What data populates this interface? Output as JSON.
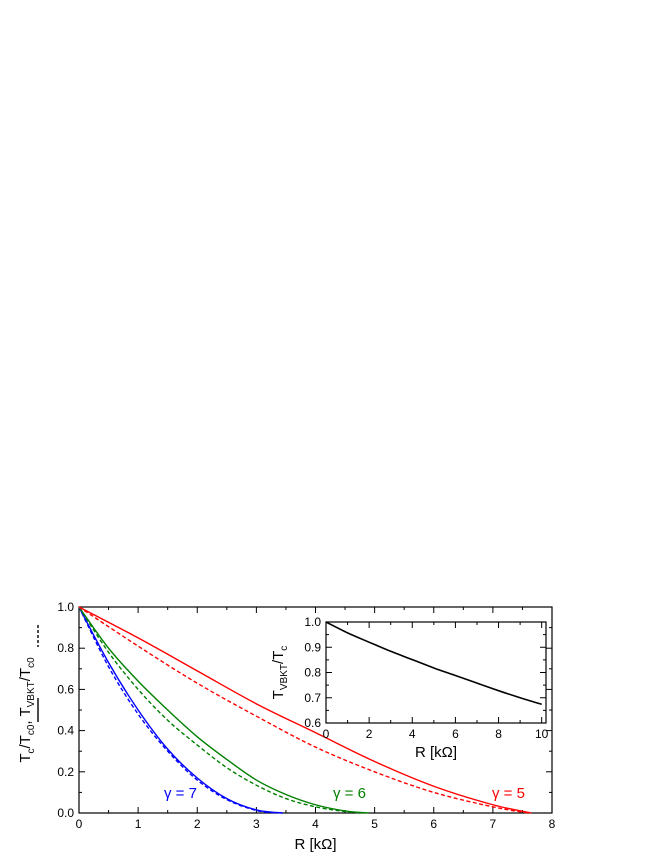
{
  "chart_data": [
    {
      "type": "line",
      "name": "main",
      "xlabel": "R [kΩ]",
      "ylabel_parts": [
        "T",
        "c",
        "/T",
        "c0",
        ", T",
        "VBKT",
        "/T",
        "c0"
      ],
      "xlim": [
        0,
        8
      ],
      "ylim": [
        0,
        1.0
      ],
      "xticks": [
        0,
        1,
        2,
        3,
        4,
        5,
        6,
        7,
        8
      ],
      "yticks": [
        0.0,
        0.2,
        0.4,
        0.6,
        0.8,
        1.0
      ],
      "xtick_labels": [
        "0",
        "1",
        "2",
        "3",
        "4",
        "5",
        "6",
        "7",
        "8"
      ],
      "ytick_labels": [
        "0.0",
        "0.2",
        "0.4",
        "0.6",
        "0.8",
        "1.0"
      ],
      "legend_style_solid": "solid line = T_c/T_c0",
      "legend_style_dashed": "dashed line = T_VBKT/T_c0",
      "series": [
        {
          "gamma_label": "γ = 7",
          "color": "#0000ff",
          "style": "solid",
          "x": [
            0,
            0.5,
            1.0,
            1.5,
            2.0,
            2.5,
            3.0,
            3.45
          ],
          "y": [
            1.0,
            0.73,
            0.5,
            0.31,
            0.17,
            0.07,
            0.015,
            0.0
          ]
        },
        {
          "gamma_label": "γ = 7",
          "color": "#0000ff",
          "style": "dashed",
          "x": [
            0,
            0.5,
            1.0,
            1.5,
            2.0,
            2.5,
            3.0,
            3.35
          ],
          "y": [
            1.0,
            0.71,
            0.48,
            0.3,
            0.16,
            0.065,
            0.012,
            0.0
          ]
        },
        {
          "gamma_label": "γ = 6",
          "color": "#008000",
          "style": "solid",
          "x": [
            0,
            0.5,
            1.0,
            1.5,
            2.0,
            2.5,
            3.0,
            3.5,
            4.0,
            4.5,
            4.9
          ],
          "y": [
            1.0,
            0.8,
            0.64,
            0.5,
            0.37,
            0.26,
            0.16,
            0.09,
            0.04,
            0.01,
            0.0
          ]
        },
        {
          "gamma_label": "γ = 6",
          "color": "#008000",
          "style": "dashed",
          "x": [
            0,
            0.5,
            1.0,
            1.5,
            2.0,
            2.5,
            3.0,
            3.5,
            4.0,
            4.5,
            4.85
          ],
          "y": [
            1.0,
            0.78,
            0.6,
            0.45,
            0.33,
            0.22,
            0.135,
            0.07,
            0.03,
            0.007,
            0.0
          ]
        },
        {
          "gamma_label": "γ = 5",
          "color": "#ff0000",
          "style": "solid",
          "x": [
            0,
            1,
            2,
            3,
            4,
            5,
            6,
            7,
            7.65
          ],
          "y": [
            1.0,
            0.85,
            0.69,
            0.53,
            0.39,
            0.25,
            0.13,
            0.04,
            0.0
          ]
        },
        {
          "gamma_label": "γ = 5",
          "color": "#ff0000",
          "style": "dashed",
          "x": [
            0,
            1,
            2,
            3,
            4,
            5,
            6,
            7,
            7.6
          ],
          "y": [
            1.0,
            0.81,
            0.63,
            0.47,
            0.32,
            0.2,
            0.1,
            0.03,
            0.0
          ]
        }
      ],
      "annotations": [
        {
          "text": "γ = 7",
          "color": "#0000ff"
        },
        {
          "text": "γ = 6",
          "color": "#008000"
        },
        {
          "text": "γ = 5",
          "color": "#ff0000"
        }
      ]
    },
    {
      "type": "line",
      "name": "inset",
      "xlabel": "R [kΩ]",
      "ylabel_parts": [
        "T",
        "VBKT",
        "/T",
        "c"
      ],
      "xlim": [
        0,
        10.2
      ],
      "ylim": [
        0.6,
        1.0
      ],
      "xticks": [
        0,
        2,
        4,
        6,
        8,
        10
      ],
      "yticks": [
        0.6,
        0.7,
        0.8,
        0.9,
        1.0
      ],
      "xtick_labels": [
        "0",
        "2",
        "4",
        "6",
        "8",
        "10"
      ],
      "ytick_labels": [
        "0.6",
        "0.7",
        "0.8",
        "0.9",
        "1.0"
      ],
      "series": [
        {
          "color": "#000000",
          "style": "solid",
          "x": [
            0,
            1,
            2,
            3,
            4,
            5,
            6,
            7,
            8,
            9,
            10
          ],
          "y": [
            1.0,
            0.957,
            0.92,
            0.884,
            0.851,
            0.818,
            0.788,
            0.758,
            0.728,
            0.7,
            0.674
          ]
        }
      ]
    }
  ]
}
